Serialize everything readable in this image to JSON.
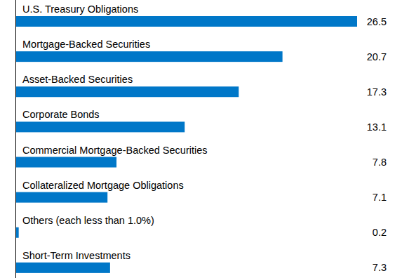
{
  "chart_data": {
    "type": "bar",
    "orientation": "horizontal",
    "categories": [
      "U.S. Treasury Obligations",
      "Mortgage-Backed Securities",
      "Asset-Backed Securities",
      "Corporate Bonds",
      "Commercial Mortgage-Backed Securities",
      "Collateralized Mortgage Obligations",
      "Others (each less than 1.0%)",
      "Short-Term Investments"
    ],
    "values": [
      26.5,
      20.7,
      17.3,
      13.1,
      7.8,
      7.1,
      0.2,
      7.3
    ],
    "color": "#0077c8",
    "xlim": [
      0,
      26.5
    ],
    "data_labels": true,
    "tick_labels": "y",
    "grid": false
  }
}
